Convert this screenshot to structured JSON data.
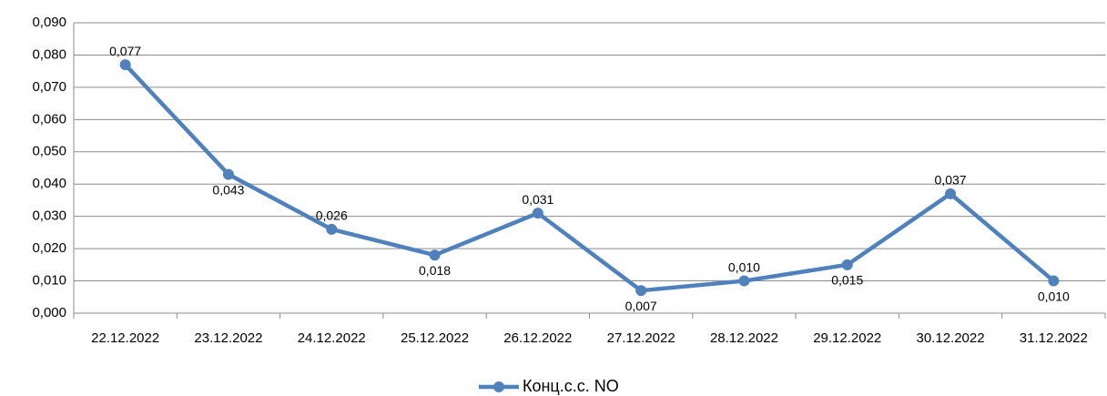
{
  "chart_data": {
    "type": "line",
    "categories": [
      "22.12.2022",
      "23.12.2022",
      "24.12.2022",
      "25.12.2022",
      "26.12.2022",
      "27.12.2022",
      "28.12.2022",
      "29.12.2022",
      "30.12.2022",
      "31.12.2022"
    ],
    "series": [
      {
        "name": "Конц.с.с. NO",
        "color": "#4f81bd",
        "values": [
          0.077,
          0.043,
          0.026,
          0.018,
          0.031,
          0.007,
          0.01,
          0.015,
          0.037,
          0.01
        ],
        "value_labels": [
          "0,077",
          "0,043",
          "0,026",
          "0,018",
          "0,031",
          "0,007",
          "0,010",
          "0,015",
          "0,037",
          "0,010"
        ]
      }
    ],
    "ylim": [
      0,
      0.09
    ],
    "yticks": [
      {
        "value": 0,
        "label": "0,000"
      },
      {
        "value": 0.01,
        "label": "0,010"
      },
      {
        "value": 0.02,
        "label": "0,020"
      },
      {
        "value": 0.03,
        "label": "0,030"
      },
      {
        "value": 0.04,
        "label": "0,040"
      },
      {
        "value": 0.05,
        "label": "0,050"
      },
      {
        "value": 0.06,
        "label": "0,060"
      },
      {
        "value": 0.07,
        "label": "0,070"
      },
      {
        "value": 0.08,
        "label": "0,080"
      },
      {
        "value": 0.09,
        "label": "0,090"
      }
    ],
    "grid": true,
    "legend": "bottom"
  }
}
